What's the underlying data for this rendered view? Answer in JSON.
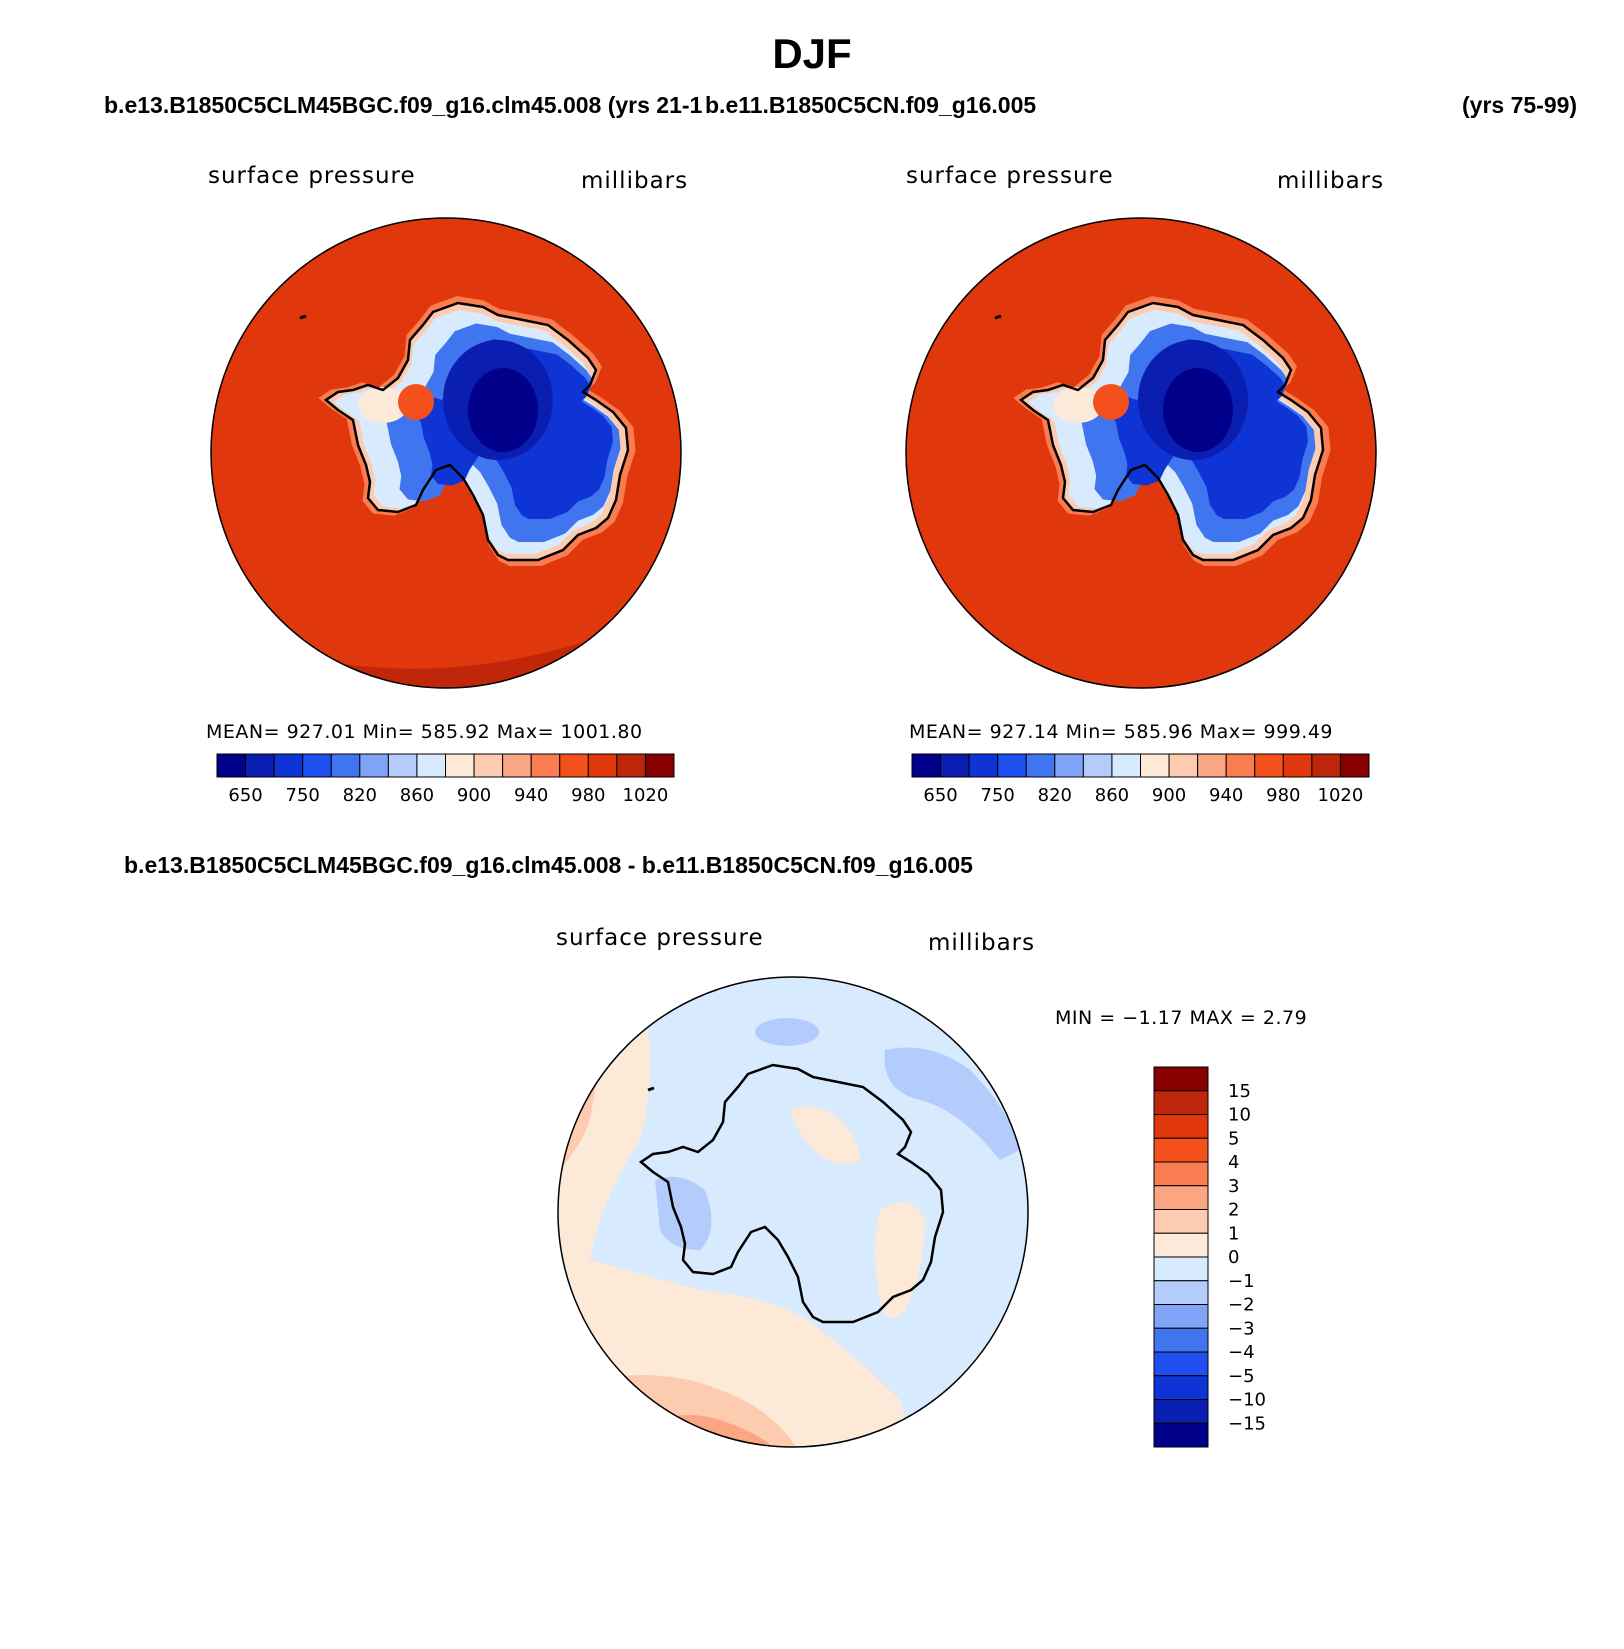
{
  "title": "DJF",
  "header": {
    "case1_label": "b.e13.B1850C5CLM45BGC.f09_g16.clm45.008 (yrs 21-1",
    "case2_label": "b.e11.B1850C5CN.f09_g16.005",
    "case2_years": "(yrs 75-99)"
  },
  "panels": [
    {
      "variable": "surface pressure",
      "units": "millibars",
      "stats": "MEAN= 927.01   Min= 585.92   Max= 1001.80"
    },
    {
      "variable": "surface pressure",
      "units": "millibars",
      "stats": "MEAN= 927.14   Min= 585.96   Max= 999.49"
    }
  ],
  "diff_panel": {
    "title": "b.e13.B1850C5CLM45BGC.f09_g16.clm45.008 - b.e11.B1850C5CN.f09_g16.005",
    "variable": "surface pressure",
    "units": "millibars",
    "minmax": "MIN =   −1.17  MAX =     2.79"
  },
  "colorbar_main": {
    "colors": [
      "#00008b",
      "#0a1fb2",
      "#0f34d6",
      "#1f4fef",
      "#3f76f0",
      "#7fa3f6",
      "#b3ccfb",
      "#d8eafd",
      "#fde9d7",
      "#fdccb0",
      "#fba683",
      "#fa7d52",
      "#f4501e",
      "#e0370c",
      "#bd260a",
      "#870000"
    ],
    "labels": [
      "650",
      "750",
      "820",
      "860",
      "900",
      "940",
      "980",
      "1020"
    ]
  },
  "colorbar_diff": {
    "colors": [
      "#870000",
      "#bd260a",
      "#e0370c",
      "#f4501e",
      "#fa7d52",
      "#fba683",
      "#fdccb0",
      "#fde9d7",
      "#d8eafd",
      "#b3ccfb",
      "#7fa3f6",
      "#3f76f0",
      "#1f4fef",
      "#0f34d6",
      "#0a1fb2",
      "#00008b"
    ],
    "labels": [
      "15",
      "10",
      "5",
      "4",
      "3",
      "2",
      "1",
      "0",
      "−1",
      "−2",
      "−3",
      "−4",
      "−5",
      "−10",
      "−15"
    ]
  }
}
